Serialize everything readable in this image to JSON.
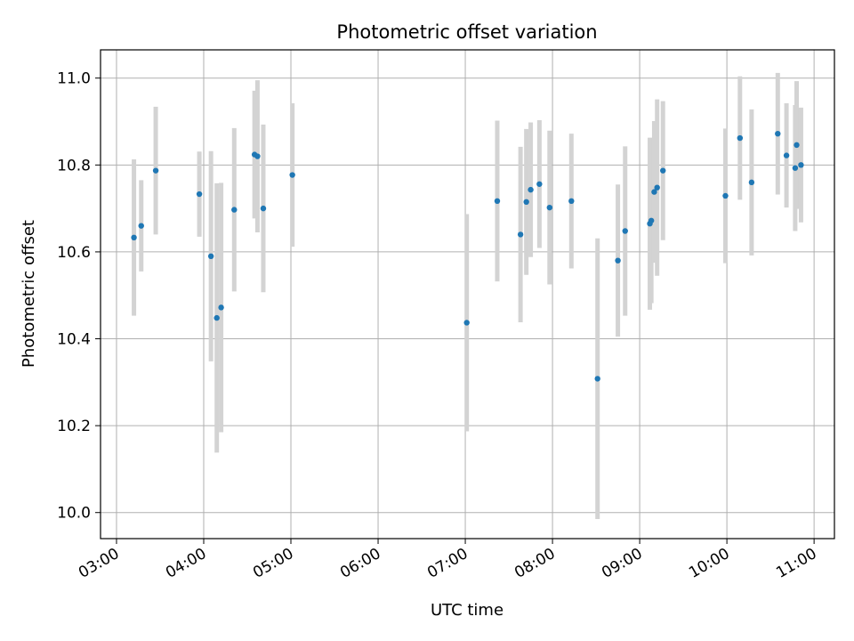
{
  "chart_data": {
    "type": "scatter",
    "title": "Photometric offset variation",
    "xlabel": "UTC time",
    "ylabel": "Photometric offset",
    "x_ticks": [
      "03:00",
      "04:00",
      "05:00",
      "06:00",
      "07:00",
      "08:00",
      "09:00",
      "10:00",
      "11:00"
    ],
    "y_ticks": [
      "10.0",
      "10.2",
      "10.4",
      "10.6",
      "10.8",
      "11.0"
    ],
    "xlim": [
      "02:49",
      "11:14"
    ],
    "ylim": [
      9.94,
      11.065
    ],
    "grid": true,
    "colors": {
      "point": "#1f77b4",
      "errorbar": "#d3d3d3",
      "grid": "#b0b0b0"
    },
    "points": [
      {
        "x": "03:12",
        "y": 10.633,
        "err": 0.18
      },
      {
        "x": "03:17",
        "y": 10.66,
        "err": 0.105
      },
      {
        "x": "03:27",
        "y": 10.787,
        "err": 0.147
      },
      {
        "x": "03:57",
        "y": 10.733,
        "err": 0.098
      },
      {
        "x": "04:05",
        "y": 10.59,
        "err": 0.242
      },
      {
        "x": "04:09",
        "y": 10.448,
        "err": 0.31
      },
      {
        "x": "04:12",
        "y": 10.472,
        "err": 0.287
      },
      {
        "x": "04:21",
        "y": 10.697,
        "err": 0.188
      },
      {
        "x": "04:35",
        "y": 10.824,
        "err": 0.147
      },
      {
        "x": "04:37",
        "y": 10.82,
        "err": 0.175
      },
      {
        "x": "04:41",
        "y": 10.7,
        "err": 0.193
      },
      {
        "x": "05:01",
        "y": 10.777,
        "err": 0.165
      },
      {
        "x": "07:01",
        "y": 10.437,
        "err": 0.25
      },
      {
        "x": "07:22",
        "y": 10.717,
        "err": 0.185
      },
      {
        "x": "07:38",
        "y": 10.64,
        "err": 0.202
      },
      {
        "x": "07:42",
        "y": 10.715,
        "err": 0.168
      },
      {
        "x": "07:45",
        "y": 10.743,
        "err": 0.155
      },
      {
        "x": "07:51",
        "y": 10.756,
        "err": 0.147
      },
      {
        "x": "07:58",
        "y": 10.702,
        "err": 0.177
      },
      {
        "x": "08:13",
        "y": 10.717,
        "err": 0.155
      },
      {
        "x": "08:31",
        "y": 10.308,
        "err": 0.323
      },
      {
        "x": "08:45",
        "y": 10.58,
        "err": 0.175
      },
      {
        "x": "08:50",
        "y": 10.648,
        "err": 0.195
      },
      {
        "x": "09:07",
        "y": 10.665,
        "err": 0.198
      },
      {
        "x": "09:08",
        "y": 10.672,
        "err": 0.19
      },
      {
        "x": "09:10",
        "y": 10.738,
        "err": 0.163
      },
      {
        "x": "09:12",
        "y": 10.748,
        "err": 0.203
      },
      {
        "x": "09:16",
        "y": 10.787,
        "err": 0.16
      },
      {
        "x": "09:59",
        "y": 10.729,
        "err": 0.155
      },
      {
        "x": "10:09",
        "y": 10.862,
        "err": 0.142
      },
      {
        "x": "10:17",
        "y": 10.76,
        "err": 0.168
      },
      {
        "x": "10:35",
        "y": 10.872,
        "err": 0.14
      },
      {
        "x": "10:41",
        "y": 10.822,
        "err": 0.12
      },
      {
        "x": "10:47",
        "y": 10.793,
        "err": 0.145
      },
      {
        "x": "10:48",
        "y": 10.846,
        "err": 0.147
      },
      {
        "x": "10:51",
        "y": 10.8,
        "err": 0.132
      }
    ]
  }
}
